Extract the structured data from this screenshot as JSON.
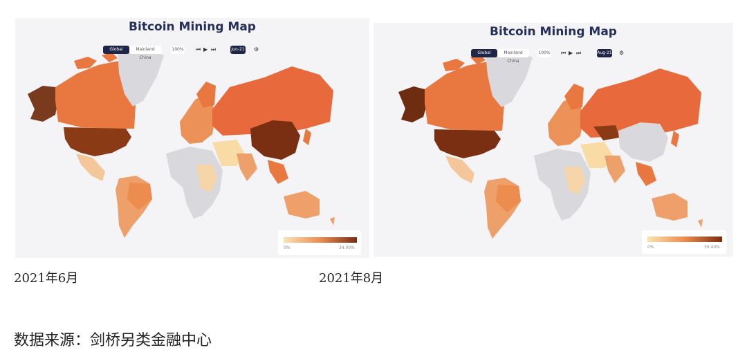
{
  "panels": [
    {
      "title": "Bitcoin Mining Map",
      "tabs": [
        "Global",
        "Mainland China"
      ],
      "zoom": "100%",
      "month": "Jun-21",
      "legend_min": "0%",
      "legend_max": "34.00%",
      "caption": "2021年6月"
    },
    {
      "title": "Bitcoin Mining Map",
      "tabs": [
        "Global",
        "Mainland China"
      ],
      "zoom": "100%",
      "month": "Aug-21",
      "legend_min": "0%",
      "legend_max": "35.40%",
      "caption": "2021年8月"
    }
  ],
  "source": "数据来源：剑桥另类金融中心",
  "colors": {
    "background": "#f4f4f6",
    "no_data": "#d9d9dd",
    "low": "#fbe3b4",
    "mid": "#f2a46a",
    "high": "#e8683a",
    "max": "#7a2e12",
    "title": "#26305a"
  },
  "regions_june": {
    "north_america": "high",
    "united_states": "max",
    "greenland": "no_data",
    "alaska": "max",
    "south_america": "mid",
    "europe": "mid",
    "russia": "high",
    "africa": "no_data",
    "middle_east": "low",
    "china": "max",
    "southeast_asia": "mid",
    "australia": "mid"
  },
  "regions_august": {
    "north_america": "high",
    "united_states": "max",
    "greenland": "no_data",
    "alaska": "max",
    "south_america": "mid",
    "europe": "mid",
    "russia": "high",
    "africa": "no_data",
    "middle_east": "low",
    "china": "no_data",
    "kazakhstan": "max",
    "southeast_asia": "mid",
    "australia": "mid"
  }
}
